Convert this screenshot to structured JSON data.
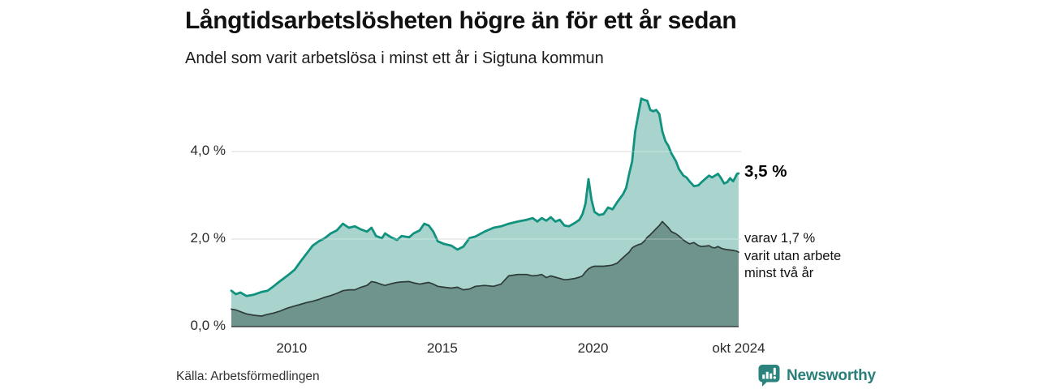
{
  "header": {
    "title": "Långtidsarbetslösheten högre än för ett år sedan",
    "subtitle": "Andel som varit arbetslösa i minst ett år i Sigtuna kommun"
  },
  "chart_data": {
    "type": "area",
    "title": "Långtidsarbetslösheten högre än för ett år sedan",
    "subtitle": "Andel som varit arbetslösa i minst ett år i Sigtuna kommun",
    "region": "Sigtuna kommun",
    "x_unit": "år (månadsvärden)",
    "xlim": [
      2008.0,
      2024.833
    ],
    "ylim": [
      0,
      5.5
    ],
    "grid": "horizontal",
    "legend_position": "right-annotations",
    "yticks": [
      {
        "value": 0.0,
        "label": "0,0 %"
      },
      {
        "value": 2.0,
        "label": "2,0 %"
      },
      {
        "value": 4.0,
        "label": "4,0 %"
      }
    ],
    "xticks": [
      {
        "value": 2010,
        "label": "2010"
      },
      {
        "value": 2015,
        "label": "2015"
      },
      {
        "value": 2020,
        "label": "2020"
      },
      {
        "value": 2024.833,
        "label": "okt 2024"
      }
    ],
    "x": [
      2008.0,
      2008.15,
      2008.3,
      2008.5,
      2008.75,
      2009.0,
      2009.2,
      2009.4,
      2009.6,
      2009.85,
      2010.1,
      2010.3,
      2010.5,
      2010.7,
      2010.9,
      2011.1,
      2011.3,
      2011.5,
      2011.7,
      2011.9,
      2012.1,
      2012.3,
      2012.5,
      2012.65,
      2012.8,
      2013.0,
      2013.1,
      2013.3,
      2013.5,
      2013.65,
      2013.9,
      2014.05,
      2014.25,
      2014.4,
      2014.55,
      2014.7,
      2014.85,
      2015.05,
      2015.3,
      2015.5,
      2015.7,
      2015.9,
      2016.1,
      2016.4,
      2016.7,
      2016.95,
      2017.2,
      2017.5,
      2017.8,
      2018.0,
      2018.15,
      2018.3,
      2018.45,
      2018.6,
      2018.75,
      2018.9,
      2019.05,
      2019.2,
      2019.4,
      2019.55,
      2019.65,
      2019.75,
      2019.85,
      2019.95,
      2020.05,
      2020.2,
      2020.35,
      2020.5,
      2020.65,
      2020.8,
      2021.0,
      2021.1,
      2021.2,
      2021.3,
      2021.4,
      2021.5,
      2021.6,
      2021.7,
      2021.8,
      2021.9,
      2022.0,
      2022.1,
      2022.2,
      2022.3,
      2022.4,
      2022.5,
      2022.6,
      2022.75,
      2022.85,
      2023.0,
      2023.1,
      2023.2,
      2023.35,
      2023.5,
      2023.6,
      2023.75,
      2023.85,
      2023.95,
      2024.05,
      2024.15,
      2024.25,
      2024.35,
      2024.45,
      2024.55,
      2024.65,
      2024.72,
      2024.78,
      2024.83
    ],
    "series": [
      {
        "name": "Andel arbetslösa minst ett år",
        "end_value": 3.5,
        "end_label": "3,5 %",
        "line_color": "#10927F",
        "fill_color": "#A8D4CD",
        "line_width": 2.8,
        "values": [
          0.82,
          0.74,
          0.78,
          0.7,
          0.73,
          0.79,
          0.82,
          0.92,
          1.03,
          1.16,
          1.3,
          1.49,
          1.67,
          1.85,
          1.95,
          2.02,
          2.13,
          2.2,
          2.35,
          2.26,
          2.29,
          2.22,
          2.17,
          2.26,
          2.07,
          2.02,
          2.13,
          2.04,
          1.98,
          2.07,
          2.04,
          2.13,
          2.2,
          2.35,
          2.31,
          2.17,
          1.95,
          1.89,
          1.85,
          1.76,
          1.83,
          2.02,
          2.06,
          2.17,
          2.26,
          2.29,
          2.35,
          2.4,
          2.44,
          2.48,
          2.4,
          2.48,
          2.42,
          2.5,
          2.4,
          2.44,
          2.31,
          2.29,
          2.37,
          2.44,
          2.57,
          2.81,
          3.37,
          2.9,
          2.62,
          2.55,
          2.57,
          2.72,
          2.68,
          2.84,
          3.03,
          3.17,
          3.49,
          3.78,
          4.46,
          4.83,
          5.21,
          5.18,
          5.16,
          4.95,
          4.92,
          4.95,
          4.86,
          4.46,
          4.24,
          4.13,
          3.96,
          3.78,
          3.6,
          3.45,
          3.41,
          3.32,
          3.21,
          3.23,
          3.3,
          3.39,
          3.45,
          3.41,
          3.45,
          3.49,
          3.39,
          3.27,
          3.3,
          3.39,
          3.32,
          3.41,
          3.49,
          3.5
        ]
      },
      {
        "name": "Varav utan arbete minst två år",
        "end_value": 1.7,
        "end_label": "varav 1,7 % varit utan arbete minst två år",
        "line_color": "#2E3B38",
        "fill_color": "#6F948D",
        "line_width": 1.7,
        "values": [
          0.4,
          0.38,
          0.34,
          0.29,
          0.26,
          0.24,
          0.28,
          0.31,
          0.35,
          0.42,
          0.47,
          0.51,
          0.55,
          0.58,
          0.62,
          0.67,
          0.71,
          0.76,
          0.82,
          0.84,
          0.84,
          0.9,
          0.94,
          1.03,
          1.01,
          0.96,
          0.94,
          0.98,
          1.01,
          1.02,
          1.03,
          1.0,
          0.97,
          0.99,
          1.01,
          0.97,
          0.92,
          0.9,
          0.88,
          0.9,
          0.84,
          0.86,
          0.92,
          0.94,
          0.92,
          0.97,
          1.16,
          1.19,
          1.19,
          1.16,
          1.17,
          1.19,
          1.12,
          1.16,
          1.13,
          1.1,
          1.07,
          1.08,
          1.1,
          1.13,
          1.16,
          1.25,
          1.32,
          1.36,
          1.38,
          1.38,
          1.38,
          1.39,
          1.41,
          1.45,
          1.58,
          1.64,
          1.7,
          1.8,
          1.84,
          1.87,
          1.89,
          1.95,
          2.04,
          2.1,
          2.17,
          2.24,
          2.31,
          2.4,
          2.33,
          2.26,
          2.17,
          2.12,
          2.07,
          1.98,
          1.93,
          1.89,
          1.92,
          1.85,
          1.83,
          1.84,
          1.85,
          1.81,
          1.8,
          1.83,
          1.79,
          1.77,
          1.76,
          1.75,
          1.74,
          1.73,
          1.72,
          1.7
        ]
      }
    ],
    "colors": {
      "grid": "#D9D9D9",
      "grid_overlay": "rgba(255,255,255,0.3)",
      "axis": "#3F3F3F",
      "background": "#FFFFFF"
    }
  },
  "annotations": {
    "primary": "3,5 %",
    "secondary_lines": [
      "varav 1,7 %",
      "varit utan arbete",
      "minst två år"
    ]
  },
  "footer": {
    "source": "Källa: Arbetsförmedlingen",
    "brand": "Newsworthy"
  }
}
